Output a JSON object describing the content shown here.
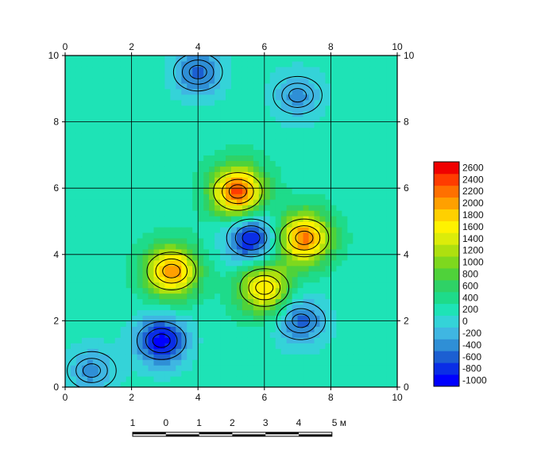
{
  "chart_data": {
    "type": "heatmap",
    "subtype": "contour-map",
    "x_ticks": [
      "0",
      "2",
      "4",
      "6",
      "8",
      "10"
    ],
    "y_ticks": [
      "0",
      "2",
      "4",
      "6",
      "8",
      "10"
    ],
    "xlim": [
      0,
      10
    ],
    "ylim": [
      0,
      10
    ],
    "grid": true,
    "colorbar": {
      "ticks": [
        "2600",
        "2400",
        "2200",
        "2000",
        "1800",
        "1600",
        "1400",
        "1200",
        "1000",
        "800",
        "600",
        "400",
        "200",
        "0",
        "-200",
        "-400",
        "-600",
        "-800",
        "-1000"
      ],
      "range": [
        -1000,
        2600
      ],
      "colors": [
        "#0000ff",
        "#0a2ee6",
        "#1c5fd2",
        "#2f8fd6",
        "#3fb6e2",
        "#34d3d8",
        "#1ee3b6",
        "#1edb8a",
        "#2fd266",
        "#4fd23a",
        "#7ed81e",
        "#aee00f",
        "#dcec0a",
        "#fff200",
        "#ffd000",
        "#ffa000",
        "#ff7000",
        "#ff3c00",
        "#f00000"
      ]
    },
    "background_value": 250,
    "features": [
      {
        "label": "positive-anomaly",
        "x": 5.2,
        "y": 5.9,
        "value": 2300
      },
      {
        "label": "positive-anomaly",
        "x": 7.2,
        "y": 4.5,
        "value": 2100
      },
      {
        "label": "positive-anomaly",
        "x": 3.2,
        "y": 3.5,
        "value": 2000
      },
      {
        "label": "positive-anomaly",
        "x": 6.0,
        "y": 3.0,
        "value": 1700
      },
      {
        "label": "negative-anomaly",
        "x": 5.6,
        "y": 4.5,
        "value": -900
      },
      {
        "label": "negative-anomaly",
        "x": 2.9,
        "y": 1.4,
        "value": -900
      },
      {
        "label": "negative-anomaly",
        "x": 7.1,
        "y": 2.0,
        "value": -500
      },
      {
        "label": "negative-anomaly",
        "x": 4.0,
        "y": 9.5,
        "value": -500
      },
      {
        "label": "negative-anomaly",
        "x": 7.0,
        "y": 8.8,
        "value": -300
      },
      {
        "label": "negative-anomaly",
        "x": 0.8,
        "y": 0.5,
        "value": -300
      }
    ]
  },
  "scalebar": {
    "labels": [
      "1",
      "0",
      "1",
      "2",
      "3",
      "4",
      "5 м"
    ]
  }
}
